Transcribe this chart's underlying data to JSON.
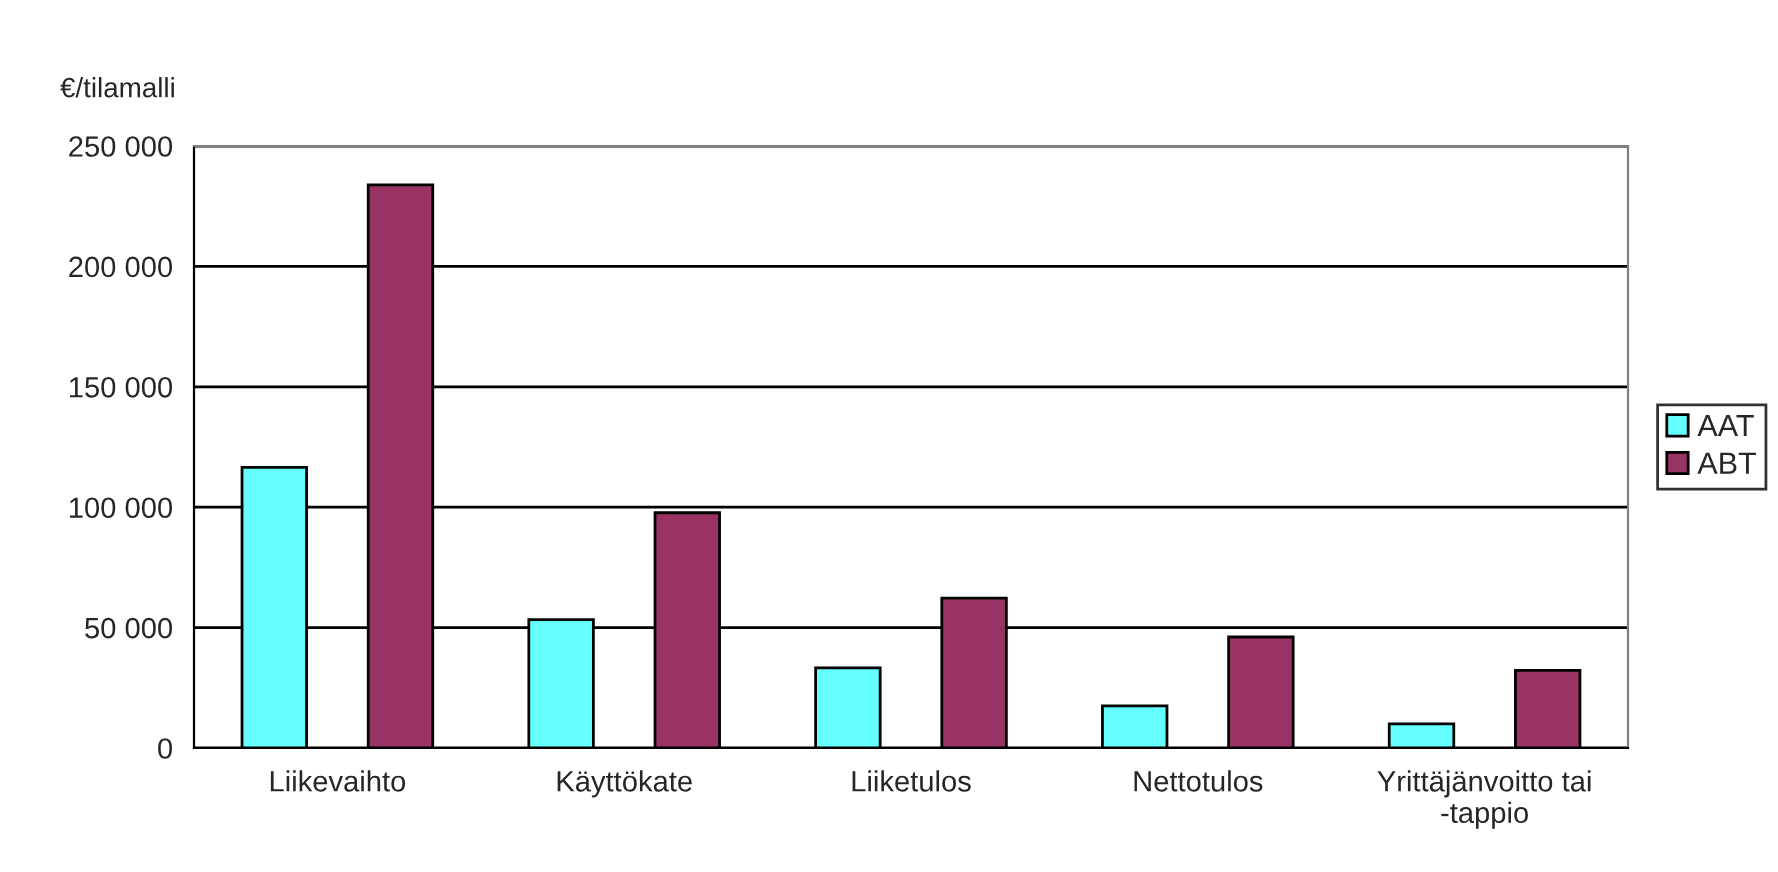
{
  "chart_data": {
    "type": "bar",
    "ylabel": "€/tilamalli",
    "categories": [
      "Liikevaihto",
      "Käyttökate",
      "Liiketulos",
      "Nettotulos",
      "Yrittäjänvoitto tai\n-tappio"
    ],
    "series": [
      {
        "name": "AAT",
        "color": "#66ffff",
        "values": [
          116500,
          53300,
          33300,
          17500,
          10000
        ]
      },
      {
        "name": "ABT",
        "color": "#993366",
        "values": [
          233900,
          97700,
          62200,
          46100,
          32200
        ]
      }
    ],
    "ylim": [
      0,
      250000
    ],
    "yticks": [
      {
        "value": 0,
        "label": "0"
      },
      {
        "value": 50000,
        "label": "50 000"
      },
      {
        "value": 100000,
        "label": "100 000"
      },
      {
        "value": 150000,
        "label": "150 000"
      },
      {
        "value": 200000,
        "label": "200 000"
      },
      {
        "value": 250000,
        "label": "250 000"
      }
    ],
    "grid": "y",
    "legend": "right"
  }
}
